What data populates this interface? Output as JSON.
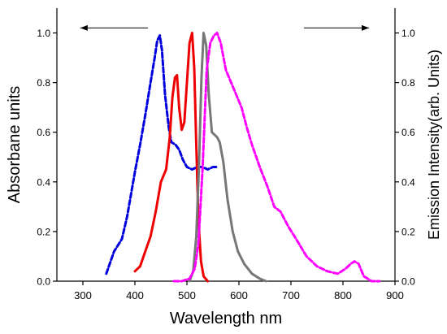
{
  "chart_data": {
    "type": "line",
    "xlabel": "Wavelength nm",
    "ylabel_left": "Absorbane units",
    "ylabel_right": "Emission  Intensity(arb. Units)",
    "xlim": [
      250,
      900
    ],
    "ylim_left": [
      0,
      1.1
    ],
    "ylim_right": [
      0,
      1.1
    ],
    "x_ticks": [
      300,
      400,
      500,
      600,
      700,
      800,
      900
    ],
    "y_ticks_left": [
      0.0,
      0.2,
      0.4,
      0.6,
      0.8,
      1.0
    ],
    "y_ticks_right": [
      0.0,
      0.2,
      0.4,
      0.6,
      0.8,
      1.0
    ],
    "grid": false,
    "annotations": [
      {
        "type": "arrow",
        "direction": "left",
        "points_to": "left axis",
        "x_from": 425,
        "x_to": 295,
        "y": 1.02
      },
      {
        "type": "arrow",
        "direction": "right",
        "points_to": "right axis",
        "x_from": 725,
        "x_to": 850,
        "y": 1.02
      }
    ],
    "series": [
      {
        "axis": "left",
        "color": "#0000dd",
        "style": "dashed",
        "x": [
          345,
          360,
          375,
          385,
          395,
          400,
          410,
          420,
          430,
          438,
          443,
          448,
          452,
          458,
          465,
          470,
          478,
          485,
          492,
          500,
          510,
          520,
          530,
          540,
          550,
          560
        ],
        "y": [
          0.03,
          0.12,
          0.17,
          0.26,
          0.38,
          0.44,
          0.55,
          0.67,
          0.8,
          0.9,
          0.97,
          0.99,
          0.93,
          0.75,
          0.62,
          0.56,
          0.55,
          0.53,
          0.49,
          0.46,
          0.45,
          0.46,
          0.46,
          0.45,
          0.46,
          0.46
        ]
      },
      {
        "axis": "right",
        "color": "#ee0000",
        "style": "solid",
        "x": [
          400,
          410,
          420,
          430,
          440,
          450,
          460,
          467,
          472,
          477,
          481,
          485,
          490,
          495,
          500,
          505,
          510,
          514,
          518,
          522,
          527,
          532,
          540
        ],
        "y": [
          0.04,
          0.06,
          0.12,
          0.18,
          0.28,
          0.4,
          0.45,
          0.58,
          0.74,
          0.82,
          0.83,
          0.7,
          0.61,
          0.64,
          0.8,
          0.96,
          1.0,
          0.86,
          0.55,
          0.25,
          0.08,
          0.02,
          0.0
        ]
      },
      {
        "axis": "right",
        "color": "#777777",
        "style": "solid",
        "x": [
          505,
          512,
          518,
          523,
          528,
          532,
          537,
          542,
          548,
          553,
          558,
          563,
          570,
          578,
          588,
          598,
          610,
          625,
          640,
          652
        ],
        "y": [
          0.0,
          0.04,
          0.18,
          0.45,
          0.82,
          1.0,
          0.95,
          0.75,
          0.6,
          0.59,
          0.58,
          0.56,
          0.48,
          0.33,
          0.2,
          0.12,
          0.07,
          0.03,
          0.01,
          0.0
        ]
      },
      {
        "axis": "right",
        "color": "#ff00ff",
        "style": "dashed",
        "x": [
          475,
          490,
          505,
          515,
          522,
          530,
          538,
          545,
          552,
          558,
          565,
          575,
          585,
          595,
          605,
          615,
          625,
          640,
          655,
          668,
          680,
          695,
          710,
          730,
          750,
          770,
          790,
          805,
          815,
          822,
          830,
          840,
          855,
          870
        ],
        "y": [
          0.0,
          0.0,
          0.01,
          0.05,
          0.15,
          0.45,
          0.85,
          0.96,
          0.99,
          1.0,
          0.96,
          0.85,
          0.8,
          0.75,
          0.7,
          0.62,
          0.55,
          0.46,
          0.38,
          0.3,
          0.28,
          0.22,
          0.17,
          0.1,
          0.06,
          0.04,
          0.03,
          0.05,
          0.07,
          0.08,
          0.07,
          0.02,
          0.0,
          0.0
        ]
      }
    ]
  }
}
